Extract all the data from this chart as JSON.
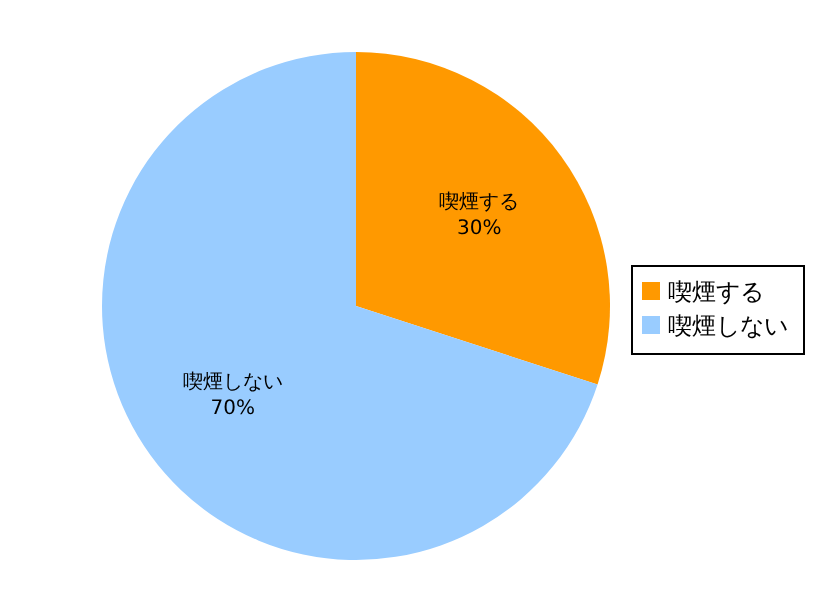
{
  "chart_data": {
    "type": "pie",
    "categories": [
      "喫煙する",
      "喫煙しない"
    ],
    "values": [
      30,
      70
    ],
    "colors": [
      "#ff9900",
      "#99ccff"
    ],
    "value_labels": [
      "30%",
      "70%"
    ],
    "legend": "right"
  }
}
